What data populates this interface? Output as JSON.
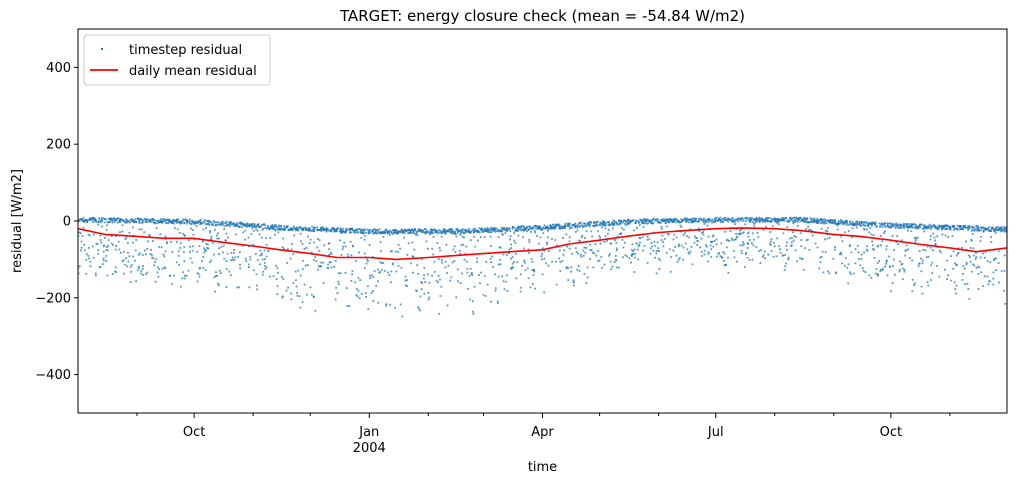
{
  "chart_data": {
    "type": "line",
    "title": "TARGET: energy closure check (mean = -54.84 W/m2)",
    "xlabel": "time",
    "ylabel": "residual [W/m2]",
    "ylim": [
      -500,
      500
    ],
    "xlim": [
      "2003-08-01",
      "2004-12-01"
    ],
    "y_ticks": [
      -400,
      -200,
      0,
      200,
      400
    ],
    "y_tick_labels": [
      "−400",
      "−200",
      "0",
      "200",
      "400"
    ],
    "x_ticks": [
      {
        "date": "2003-10-01",
        "label": "Oct",
        "sublabel": ""
      },
      {
        "date": "2004-01-01",
        "label": "Jan",
        "sublabel": "2004"
      },
      {
        "date": "2004-04-01",
        "label": "Apr",
        "sublabel": ""
      },
      {
        "date": "2004-07-01",
        "label": "Jul",
        "sublabel": ""
      },
      {
        "date": "2004-10-01",
        "label": "Oct",
        "sublabel": ""
      }
    ],
    "x_minor_ticks": [
      "2003-09-01",
      "2003-11-01",
      "2003-12-01",
      "2004-02-01",
      "2004-03-01",
      "2004-05-01",
      "2004-06-01",
      "2004-08-01",
      "2004-09-01",
      "2004-11-01"
    ],
    "legend_position": "top-left",
    "grid": false,
    "series": [
      {
        "name": "timestep residual",
        "style": "scatter",
        "color": "#1f77b4",
        "marker": "small dots",
        "envelope": {
          "x": [
            "2003-08-01",
            "2003-10-01",
            "2003-11-15",
            "2004-01-01",
            "2004-02-15",
            "2004-04-01",
            "2004-05-15",
            "2004-07-01",
            "2004-08-15",
            "2004-10-01",
            "2004-12-01"
          ],
          "upper": [
            5,
            0,
            -15,
            -25,
            -25,
            -15,
            0,
            5,
            5,
            -10,
            -20
          ],
          "lower": [
            -170,
            -200,
            -250,
            -270,
            -260,
            -210,
            -160,
            -140,
            -150,
            -200,
            -250
          ]
        }
      },
      {
        "name": "daily mean residual",
        "style": "line",
        "color": "#ff0000",
        "x": [
          "2003-08-01",
          "2003-08-15",
          "2003-09-01",
          "2003-09-15",
          "2003-10-01",
          "2003-10-15",
          "2003-11-01",
          "2003-11-15",
          "2003-12-01",
          "2003-12-15",
          "2004-01-01",
          "2004-01-15",
          "2004-02-01",
          "2004-02-15",
          "2004-03-01",
          "2004-03-15",
          "2004-04-01",
          "2004-04-15",
          "2004-05-01",
          "2004-05-15",
          "2004-06-01",
          "2004-06-15",
          "2004-07-01",
          "2004-07-15",
          "2004-08-01",
          "2004-08-15",
          "2004-09-01",
          "2004-09-15",
          "2004-10-01",
          "2004-10-15",
          "2004-11-01",
          "2004-11-15",
          "2004-12-01"
        ],
        "values": [
          -20,
          -35,
          -40,
          -45,
          -45,
          -55,
          -65,
          -75,
          -85,
          -95,
          -95,
          -100,
          -95,
          -90,
          -85,
          -80,
          -75,
          -60,
          -50,
          -40,
          -30,
          -25,
          -20,
          -18,
          -20,
          -25,
          -35,
          -40,
          -50,
          -60,
          -70,
          -80,
          -70
        ]
      }
    ]
  }
}
